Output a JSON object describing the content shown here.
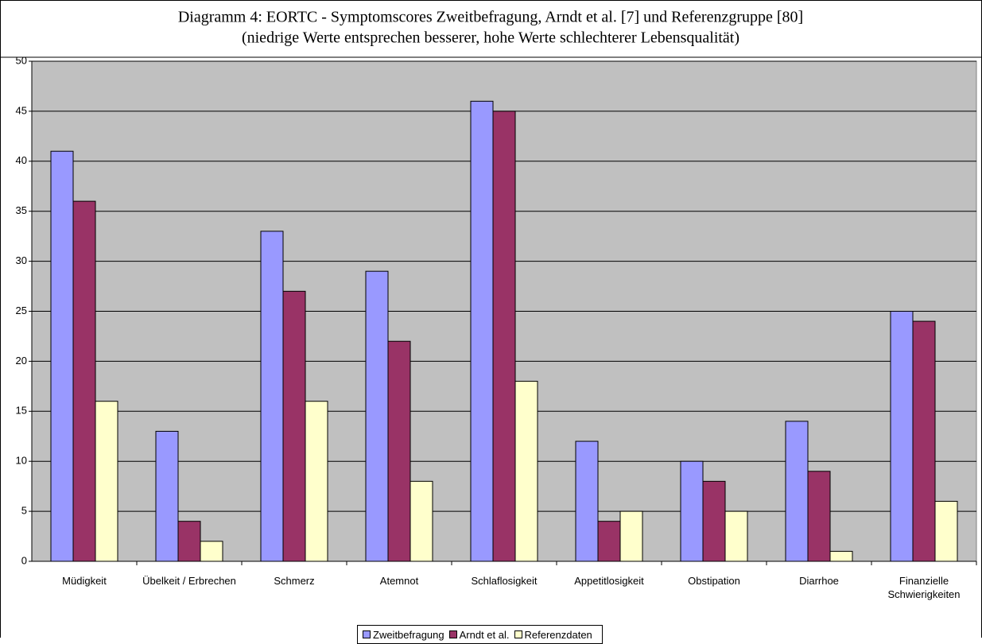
{
  "chart_data": {
    "type": "bar",
    "title": "Diagramm 4: EORTC - Symptomscores Zweitbefragung, Arndt et al. [7] und Referenzgruppe [80]",
    "subtitle": "(niedrige Werte entsprechen besserer, hohe Werte schlechterer Lebensqualität)",
    "categories": [
      "Müdigkeit",
      "Übelkeit / Erbrechen",
      "Schmerz",
      "Atemnot",
      "Schlaflosigkeit",
      "Appetitlosigkeit",
      "Obstipation",
      "Diarrhoe",
      "Finanzielle Schwierigkeiten"
    ],
    "series": [
      {
        "name": "Zweitbefragung",
        "color": "#9999ff",
        "values": [
          41,
          13,
          33,
          29,
          46,
          12,
          10,
          14,
          25
        ]
      },
      {
        "name": "Arndt et al.",
        "color": "#993366",
        "values": [
          36,
          4,
          27,
          22,
          45,
          4,
          8,
          9,
          24
        ]
      },
      {
        "name": "Referenzdaten",
        "color": "#ffffcc",
        "values": [
          16,
          2,
          16,
          8,
          18,
          5,
          5,
          1,
          6
        ]
      }
    ],
    "ylim": [
      0,
      50
    ],
    "yticks": [
      0,
      5,
      10,
      15,
      20,
      25,
      30,
      35,
      40,
      45,
      50
    ],
    "grid": true,
    "background": "#c0c0c0"
  }
}
